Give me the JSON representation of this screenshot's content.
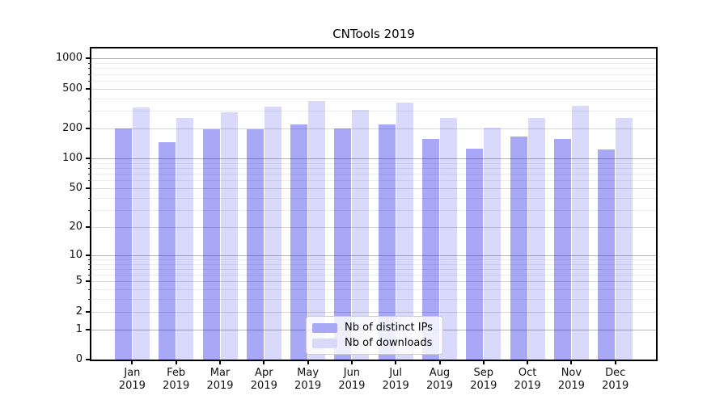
{
  "chart_data": {
    "type": "bar",
    "title": "CNTools 2019",
    "categories": [
      "Jan 2019",
      "Feb 2019",
      "Mar 2019",
      "Apr 2019",
      "May 2019",
      "Jun 2019",
      "Jul 2019",
      "Aug 2019",
      "Sep 2019",
      "Oct 2019",
      "Nov 2019",
      "Dec 2019"
    ],
    "months": [
      "Jan",
      "Feb",
      "Mar",
      "Apr",
      "May",
      "Jun",
      "Jul",
      "Aug",
      "Sep",
      "Oct",
      "Nov",
      "Dec"
    ],
    "year_label": "2019",
    "series": [
      {
        "name": "Nb of distinct IPs",
        "values": [
          200,
          146,
          195,
          198,
          220,
          200,
          220,
          156,
          125,
          165,
          158,
          124
        ],
        "fill": "rgba(0,0,230,0.34)",
        "solid": "#a8a8f6"
      },
      {
        "name": "Nb of downloads",
        "values": [
          325,
          255,
          290,
          330,
          375,
          305,
          360,
          255,
          205,
          255,
          335,
          255
        ],
        "fill": "rgba(0,0,230,0.15)",
        "solid": "#d9d9fa"
      }
    ],
    "yscale": "symlog (log10 of 1+value)",
    "y_tick_values": [
      0,
      1,
      2,
      5,
      10,
      20,
      50,
      100,
      200,
      500,
      1000
    ],
    "ylim": [
      0,
      1260
    ],
    "xlabel": "",
    "ylabel": "",
    "grid": true,
    "legend_position": "inside bottom-center"
  },
  "colors": {
    "background": "#ffffff",
    "spine": "#000000",
    "grid_decade": "#b4b4b4",
    "grid_labeled": "#d8d8d8",
    "grid_minor": "#ececec",
    "tick_text": "#111111",
    "legend_border": "#cccccc"
  }
}
